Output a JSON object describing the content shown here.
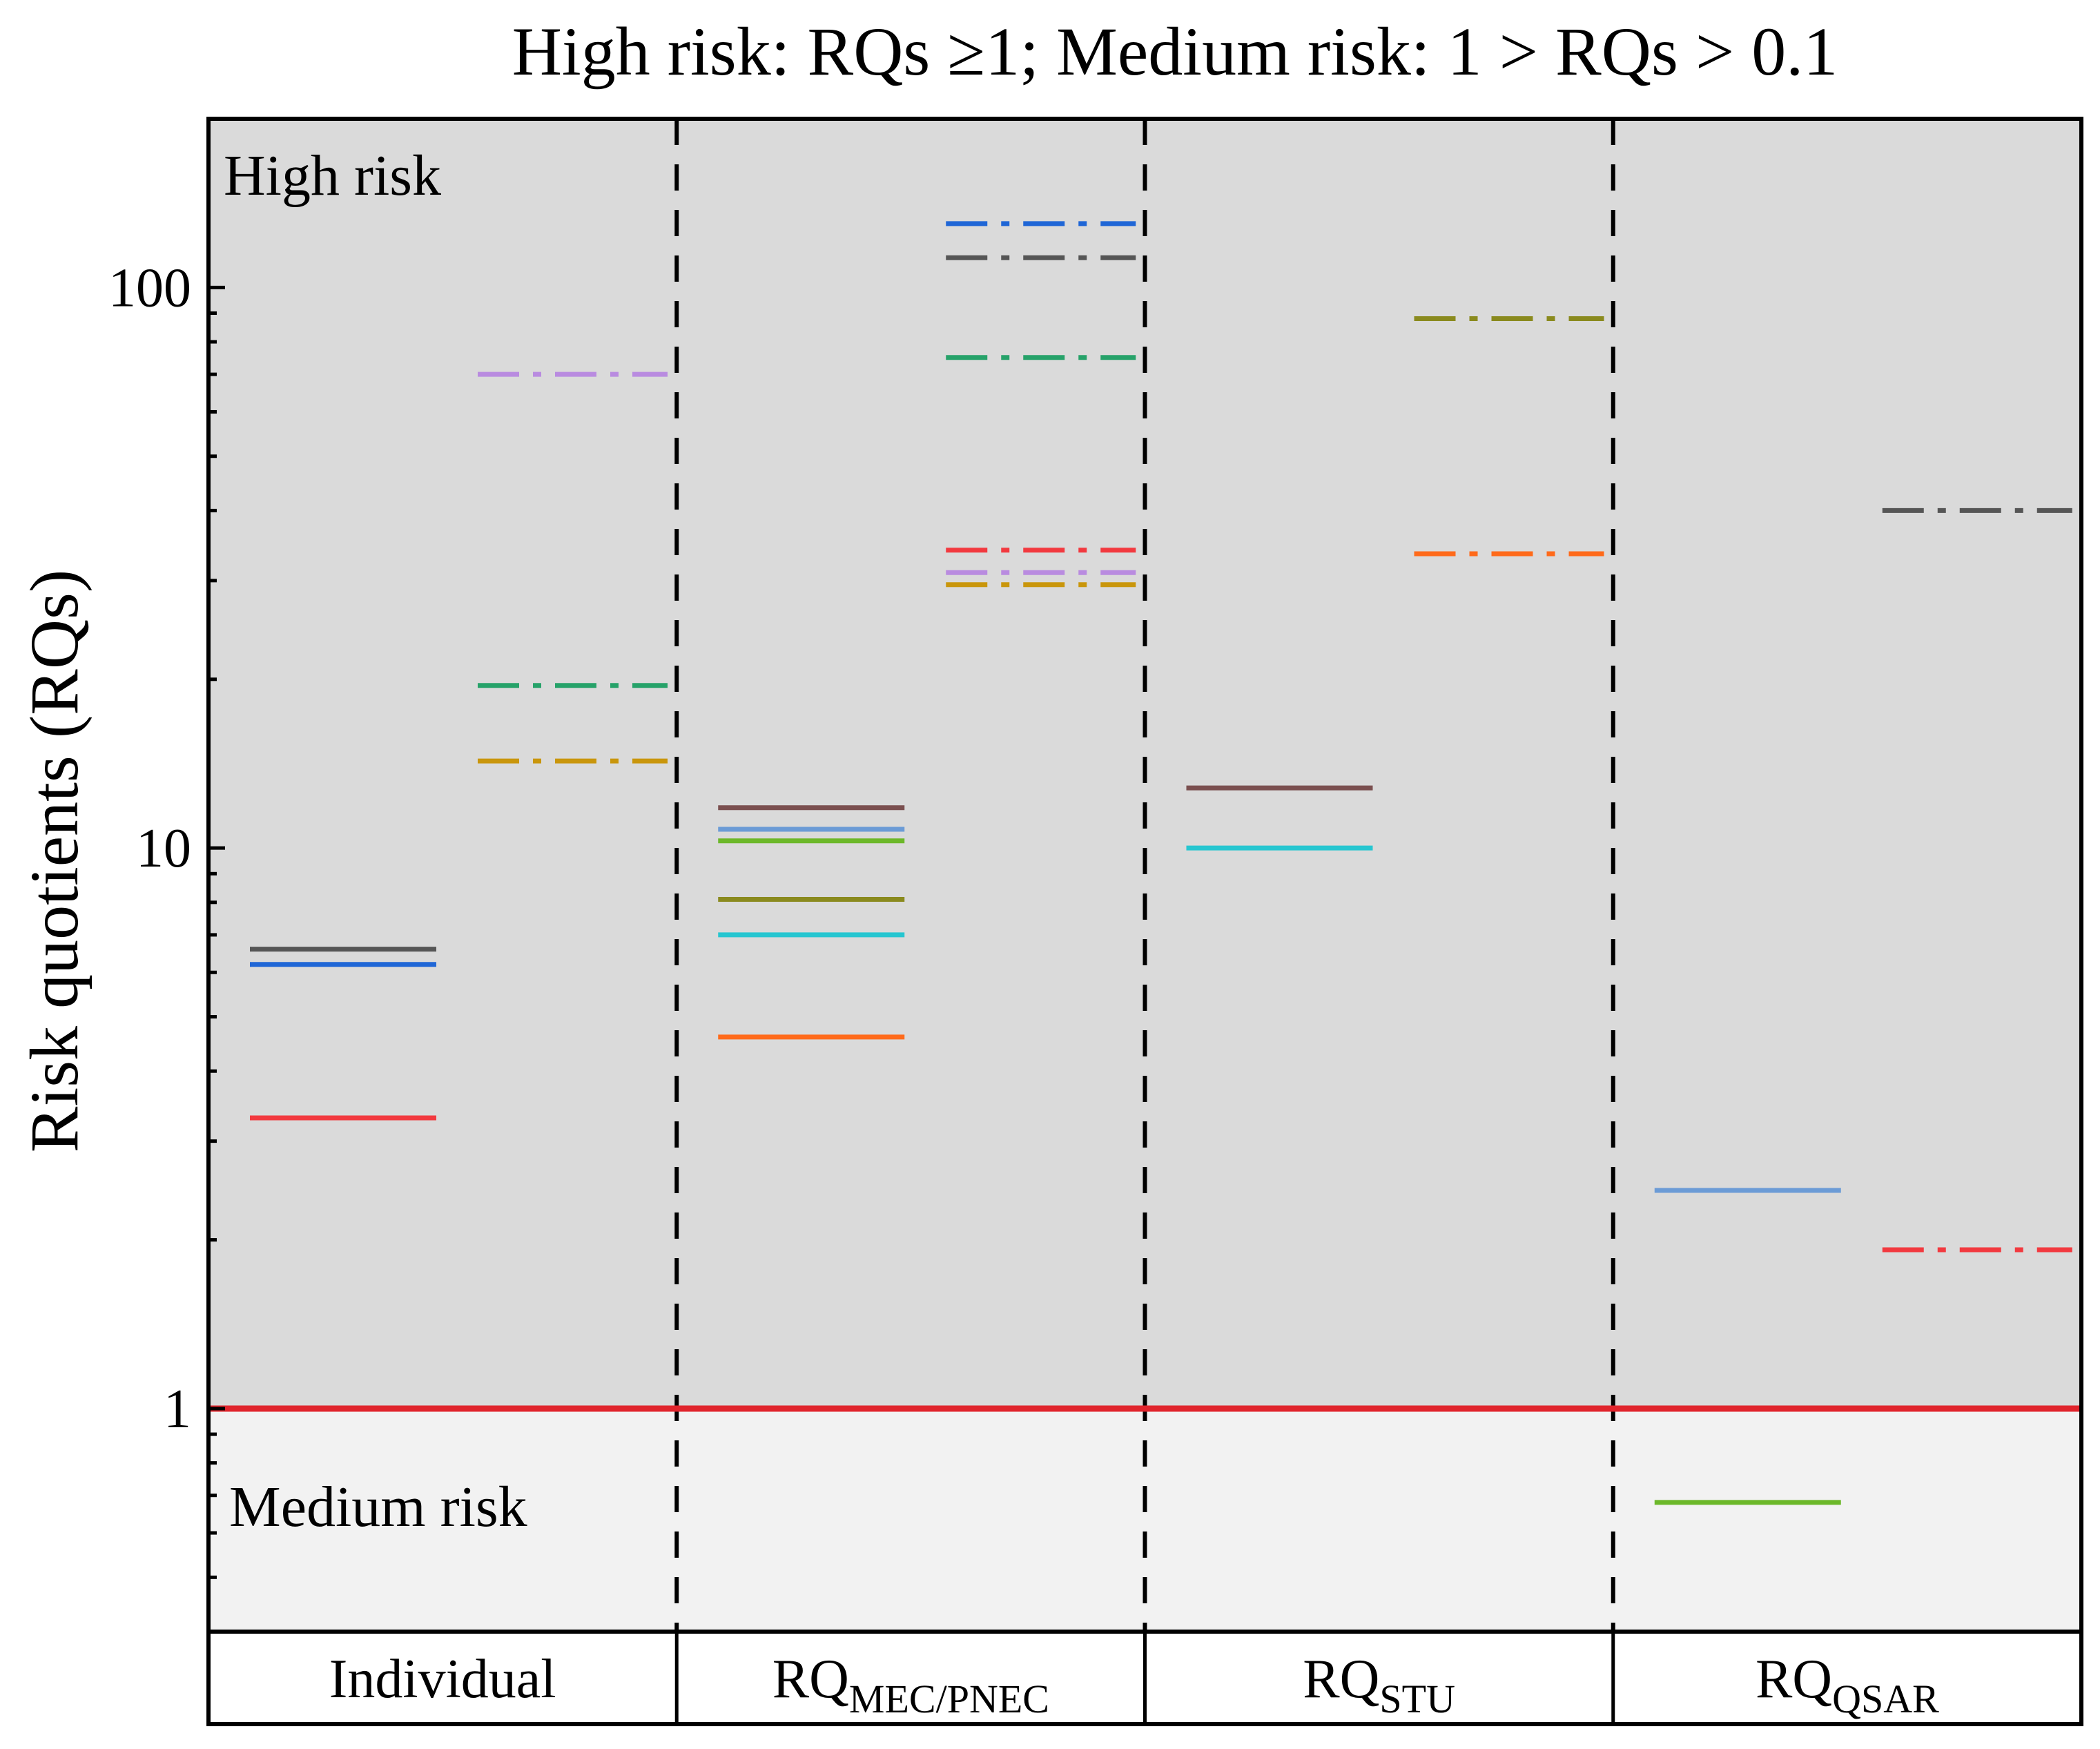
{
  "chart_data": {
    "type": "line",
    "title": "High risk: RQs ≥1; Medium risk: 1 > RQs > 0.1",
    "ylabel": "Risk quotients (RQs)",
    "xlabel": "",
    "yscale": "log",
    "ylim": [
      0.4,
      200
    ],
    "yticks": [
      {
        "value": 1,
        "label": "1"
      },
      {
        "value": 10,
        "label": "10"
      },
      {
        "value": 100,
        "label": "100"
      }
    ],
    "threshold": {
      "value": 1,
      "color": "#e0242c"
    },
    "zones": [
      {
        "name": "High risk",
        "label": "High risk",
        "from": 1,
        "to": 200,
        "color": "#dadada"
      },
      {
        "name": "Medium risk",
        "label": "Medium risk",
        "from": 0.4,
        "to": 1,
        "color": "#f2f2f2"
      }
    ],
    "groups": [
      {
        "name": "Individual",
        "label_main": "Individual",
        "label_sub": ""
      },
      {
        "name": "RQ_MEC/PNEC",
        "label_main": "RQ",
        "label_sub": "MEC/PNEC"
      },
      {
        "name": "RQ_STU",
        "label_main": "RQ",
        "label_sub": "STU"
      },
      {
        "name": "RQ_QSAR",
        "label_main": "RQ",
        "label_sub": "QSAR"
      }
    ],
    "series": [
      {
        "group": 0,
        "column": 0,
        "style": "solid",
        "color": "#555555",
        "value": 6.6
      },
      {
        "group": 0,
        "column": 0,
        "style": "solid",
        "color": "#1f66d6",
        "value": 6.2
      },
      {
        "group": 0,
        "column": 0,
        "style": "solid",
        "color": "#f2393f",
        "value": 3.3
      },
      {
        "group": 0,
        "column": 1,
        "style": "dashdot",
        "color": "#b98be0",
        "value": 70
      },
      {
        "group": 0,
        "column": 1,
        "style": "dashdot",
        "color": "#26a269",
        "value": 19.5
      },
      {
        "group": 0,
        "column": 1,
        "style": "dashdot",
        "color": "#c9960c",
        "value": 14.3
      },
      {
        "group": 1,
        "column": 0,
        "style": "solid",
        "color": "#7a4f4f",
        "value": 11.8
      },
      {
        "group": 1,
        "column": 0,
        "style": "solid",
        "color": "#6b9bd6",
        "value": 10.8
      },
      {
        "group": 1,
        "column": 0,
        "style": "solid",
        "color": "#6cb82a",
        "value": 10.3
      },
      {
        "group": 1,
        "column": 0,
        "style": "solid",
        "color": "#8a8a1e",
        "value": 8.1
      },
      {
        "group": 1,
        "column": 0,
        "style": "solid",
        "color": "#26c6d0",
        "value": 7.0
      },
      {
        "group": 1,
        "column": 0,
        "style": "solid",
        "color": "#ff6a1a",
        "value": 4.6
      },
      {
        "group": 1,
        "column": 1,
        "style": "dashdot",
        "color": "#1f66d6",
        "value": 130
      },
      {
        "group": 1,
        "column": 1,
        "style": "dashdot",
        "color": "#555555",
        "value": 113
      },
      {
        "group": 1,
        "column": 1,
        "style": "dashdot",
        "color": "#26a269",
        "value": 75
      },
      {
        "group": 1,
        "column": 1,
        "style": "dashdot",
        "color": "#f2393f",
        "value": 34
      },
      {
        "group": 1,
        "column": 1,
        "style": "dashdot",
        "color": "#b98be0",
        "value": 31
      },
      {
        "group": 1,
        "column": 1,
        "style": "dashdot",
        "color": "#c9960c",
        "value": 29.5
      },
      {
        "group": 2,
        "column": 0,
        "style": "solid",
        "color": "#7a4f4f",
        "value": 12.8
      },
      {
        "group": 2,
        "column": 0,
        "style": "solid",
        "color": "#26c6d0",
        "value": 10.0
      },
      {
        "group": 2,
        "column": 1,
        "style": "dashdot",
        "color": "#8a8a1e",
        "value": 88
      },
      {
        "group": 2,
        "column": 1,
        "style": "dashdot",
        "color": "#ff6a1a",
        "value": 33.5
      },
      {
        "group": 3,
        "column": 0,
        "style": "solid",
        "color": "#6b9bd6",
        "value": 2.45
      },
      {
        "group": 3,
        "column": 0,
        "style": "solid",
        "color": "#6cb82a",
        "value": 0.68
      },
      {
        "group": 3,
        "column": 1,
        "style": "dashdot",
        "color": "#555555",
        "value": 40
      },
      {
        "group": 3,
        "column": 1,
        "style": "dashdot",
        "color": "#f2393f",
        "value": 1.92
      }
    ]
  }
}
